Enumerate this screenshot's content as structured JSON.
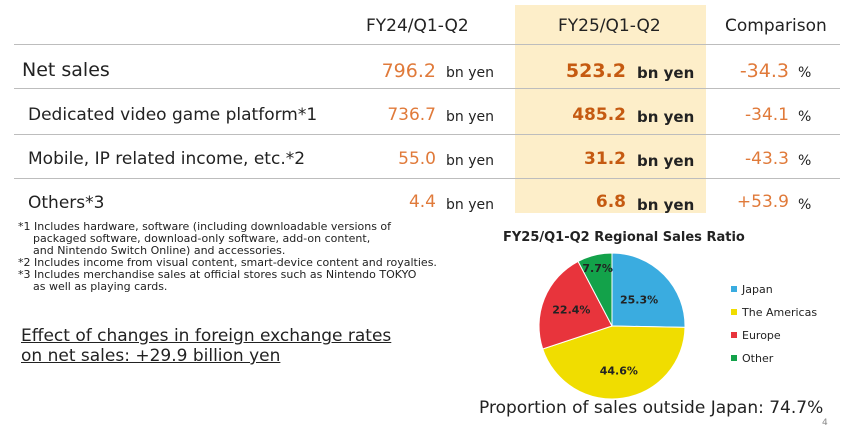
{
  "headers": {
    "col1": "FY24/Q1-Q2",
    "col2": "FY25/Q1-Q2",
    "col3": "Comparison"
  },
  "rows": [
    {
      "label": "Net sales",
      "v1": "796.2",
      "u1": "bn yen",
      "v2": "523.2",
      "u2": "bn yen",
      "cmp": "-34.3",
      "pct": "%"
    },
    {
      "label": "Dedicated video game platform*1",
      "v1": "736.7",
      "u1": "bn yen",
      "v2": "485.2",
      "u2": "bn yen",
      "cmp": "-34.1",
      "pct": "%"
    },
    {
      "label": "Mobile, IP related income, etc.*2",
      "v1": "55.0",
      "u1": "bn yen",
      "v2": "31.2",
      "u2": "bn yen",
      "cmp": "-43.3",
      "pct": "%"
    },
    {
      "label": "Others*3",
      "v1": "4.4",
      "u1": "bn yen",
      "v2": "6.8",
      "u2": "bn yen",
      "cmp": "+53.9",
      "pct": "%"
    }
  ],
  "notes": {
    "n1_line1": "*1 Includes hardware, software (including downloadable versions of",
    "n1_line2": "packaged software, download-only software, add-on content,",
    "n1_line3": "and Nintendo Switch Online) and accessories.",
    "n2": "*2 Includes income from visual content, smart-device content and royalties.",
    "n3_line1": "*3 Includes merchandise sales at official stores such as Nintendo TOKYO",
    "n3_line2": "as well as playing cards."
  },
  "effect": {
    "line1": "Effect of changes in foreign exchange rates",
    "line2": "on net sales: +29.9 billion yen"
  },
  "footer": {
    "proportion": "Proportion of sales outside Japan: 74.7%",
    "page_number": "4"
  },
  "colors": {
    "highlight": "#fdeec9",
    "number": "#e07a3a",
    "number_bold": "#c55a11",
    "Japan": "#3aace0",
    "The Americas": "#f0dd00",
    "Europe": "#e8343c",
    "Other": "#13a24a"
  },
  "chart_data": {
    "type": "pie",
    "title": "FY25/Q1-Q2 Regional Sales Ratio",
    "categories": [
      "Japan",
      "The Americas",
      "Europe",
      "Other"
    ],
    "values": [
      25.3,
      44.6,
      22.4,
      7.7
    ],
    "labels": [
      "25.3%",
      "44.6%",
      "22.4%",
      "7.7%"
    ],
    "legend_position": "right"
  }
}
